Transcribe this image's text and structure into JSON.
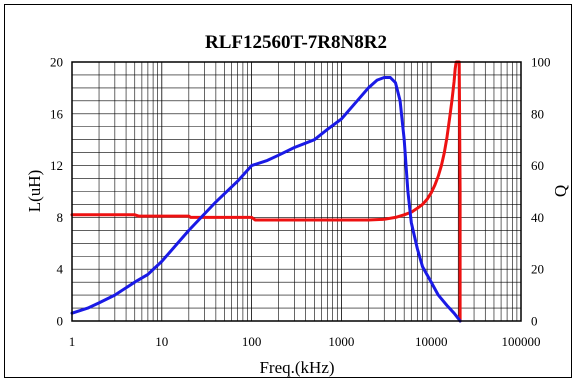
{
  "chart_data": {
    "type": "line",
    "title": "RLF12560T-7R8N8R2",
    "xlabel": "Freq.(kHz)",
    "ylabel": "L(uH)",
    "y2label": "Q",
    "xscale": "log",
    "xlim": [
      1,
      100000
    ],
    "ylim": [
      0,
      20
    ],
    "y2lim": [
      0,
      100
    ],
    "grid": true,
    "x_tick_labels": [
      "1",
      "10",
      "100",
      "1000",
      "10000",
      "100000"
    ],
    "y_tick_labels": [
      "0",
      "4",
      "8",
      "12",
      "16",
      "20"
    ],
    "y2_tick_labels": [
      "0",
      "20",
      "40",
      "60",
      "80",
      "100"
    ],
    "colors": {
      "inductance": "#ee1111",
      "q_factor": "#1a1ae6"
    },
    "series": [
      {
        "key": "inductance",
        "axis": "left",
        "x": [
          1,
          2,
          4,
          5,
          5.5,
          10,
          20,
          21,
          50,
          100,
          110,
          200,
          500,
          1000,
          2000,
          3000,
          4000,
          5000,
          6000,
          7000,
          8000,
          9000,
          10000,
          11000,
          12000,
          13000,
          14000,
          15000,
          16000,
          17000,
          18000,
          18500,
          19000,
          19000,
          19500,
          20000,
          20500,
          21000,
          21000
        ],
        "y": [
          8.2,
          8.2,
          8.2,
          8.2,
          8.1,
          8.1,
          8.1,
          8.0,
          8.0,
          8.0,
          7.8,
          7.8,
          7.8,
          7.8,
          7.8,
          7.85,
          8.0,
          8.2,
          8.4,
          8.7,
          9.0,
          9.4,
          9.9,
          10.5,
          11.2,
          12.0,
          13.0,
          14.2,
          15.6,
          17.0,
          18.5,
          19.5,
          20,
          20,
          20,
          20,
          20,
          10,
          0
        ]
      },
      {
        "key": "q_factor",
        "axis": "right",
        "x": [
          1,
          1.5,
          2,
          3,
          5,
          7,
          10,
          20,
          40,
          70,
          100,
          150,
          200,
          300,
          500,
          700,
          1000,
          1500,
          2000,
          2500,
          3000,
          3500,
          4000,
          4500,
          5000,
          5500,
          6000,
          7000,
          8000,
          10000,
          12000,
          15000,
          18000,
          20000,
          21000
        ],
        "y": [
          3,
          5,
          7,
          10,
          15,
          18,
          23,
          35,
          46,
          54,
          60,
          62,
          64,
          67,
          70,
          74,
          78,
          85,
          90,
          93,
          94,
          94,
          92,
          85,
          70,
          50,
          38,
          28,
          21,
          15,
          10,
          6,
          3,
          1,
          0
        ]
      }
    ]
  }
}
